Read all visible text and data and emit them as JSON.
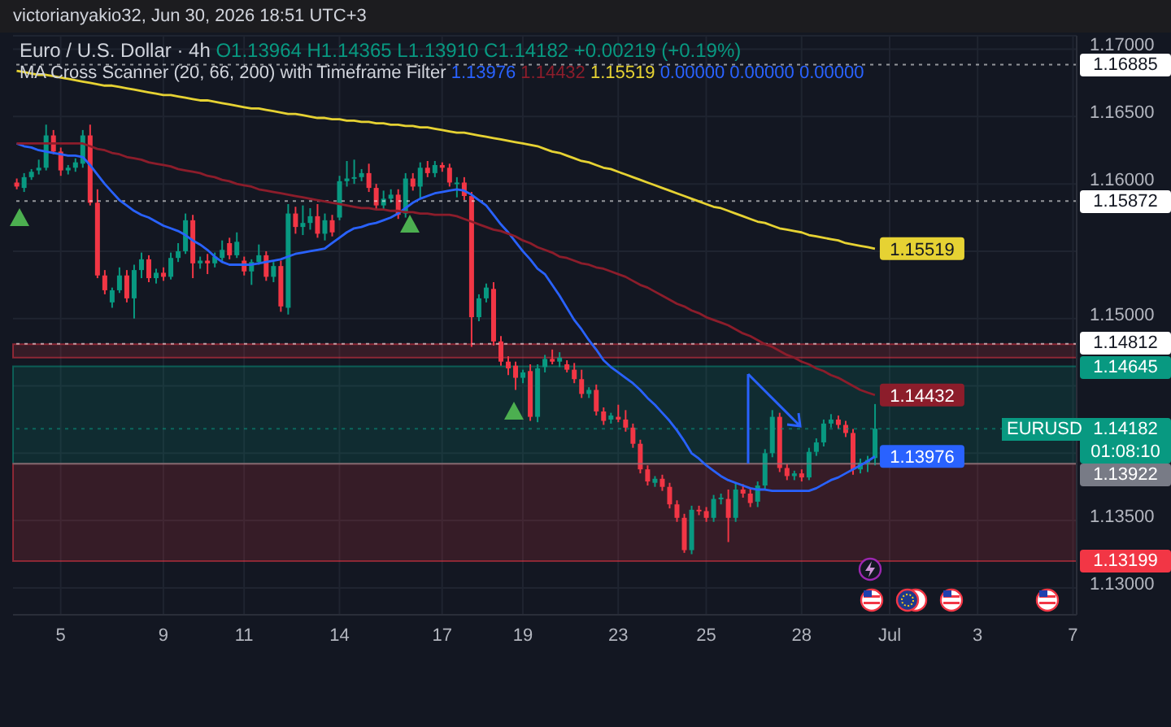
{
  "chart_data": {
    "type": "candlestick",
    "title": "Euro / U.S. Dollar · 4h",
    "subtitle": "victorianyakio32, Jun 30, 2026 18:51 UTC+3",
    "annotations": [
      "O1.13964 H1.14365 L1.13910 C1.14182 +0.00219 (+0.19%)",
      "MA Cross Scanner (20, 66, 200) with Timeframe Filter",
      "0.00000 0.00000 0.00000",
      {
        "text": "EURUSD",
        "y": 1.14182
      },
      "01:08:10"
    ],
    "categories": [
      null,
      null,
      null,
      null,
      null,
      null,
      "5",
      null,
      null,
      null,
      null,
      null,
      null,
      null,
      null,
      null,
      null,
      null,
      null,
      null,
      "9",
      null,
      null,
      null,
      null,
      null,
      null,
      null,
      null,
      null,
      null,
      "11",
      null,
      null,
      null,
      null,
      null,
      null,
      null,
      null,
      null,
      null,
      null,
      null,
      "14",
      null,
      null,
      null,
      null,
      null,
      null,
      null,
      null,
      null,
      null,
      null,
      null,
      null,
      "17",
      null,
      null,
      null,
      null,
      null,
      null,
      null,
      null,
      null,
      null,
      "19",
      null,
      null,
      null,
      null,
      null,
      null,
      null,
      null,
      null,
      null,
      null,
      null,
      "23",
      null,
      null,
      null,
      null,
      null,
      null,
      null,
      null,
      null,
      null,
      null,
      "25",
      null,
      null,
      null,
      null,
      null,
      null,
      null,
      null,
      null,
      null,
      null,
      null,
      "28",
      null,
      null,
      null,
      null,
      null,
      null,
      null,
      null,
      null,
      null,
      null,
      "Jul",
      null,
      null,
      null,
      null,
      null,
      null,
      null,
      null,
      null,
      null,
      null,
      "3",
      null,
      null,
      null,
      null,
      null,
      null,
      null,
      null,
      null,
      null,
      null,
      null,
      "7"
    ],
    "ohlc": [
      [
        1.1601,
        1.1604,
        1.1596,
        1.1598
      ],
      [
        1.1597,
        1.1608,
        1.1594,
        1.1605
      ],
      [
        1.1605,
        1.1611,
        1.1603,
        1.1609
      ],
      [
        1.161,
        1.1618,
        1.1607,
        1.1612
      ],
      [
        1.1612,
        1.1644,
        1.161,
        1.1636
      ],
      [
        1.1636,
        1.164,
        1.1622,
        1.1624
      ],
      [
        1.1624,
        1.1627,
        1.1606,
        1.161
      ],
      [
        1.161,
        1.1614,
        1.1607,
        1.1612
      ],
      [
        1.1612,
        1.1619,
        1.1609,
        1.1616
      ],
      [
        1.1615,
        1.164,
        1.1612,
        1.1636
      ],
      [
        1.1636,
        1.1644,
        1.1584,
        1.1586
      ],
      [
        1.1586,
        1.1596,
        1.153,
        1.1532
      ],
      [
        1.1532,
        1.1536,
        1.1518,
        1.1521
      ],
      [
        1.1512,
        1.1523,
        1.1508,
        1.1521
      ],
      [
        1.1521,
        1.1538,
        1.1519,
        1.1532
      ],
      [
        1.1532,
        1.1536,
        1.1512,
        1.1515
      ],
      [
        1.1515,
        1.154,
        1.15,
        1.1536
      ],
      [
        1.1536,
        1.1549,
        1.153,
        1.1544
      ],
      [
        1.1544,
        1.1547,
        1.1527,
        1.153
      ],
      [
        1.153,
        1.1537,
        1.1526,
        1.1534
      ],
      [
        1.1534,
        1.1538,
        1.1528,
        1.1531
      ],
      [
        1.1531,
        1.1549,
        1.1529,
        1.1545
      ],
      [
        1.1545,
        1.1556,
        1.1542,
        1.155
      ],
      [
        1.155,
        1.1578,
        1.1548,
        1.1573
      ],
      [
        1.1573,
        1.1577,
        1.153,
        1.1541
      ],
      [
        1.1541,
        1.1546,
        1.1537,
        1.1543
      ],
      [
        1.1543,
        1.1548,
        1.1533,
        1.1541
      ],
      [
        1.1541,
        1.1549,
        1.1538,
        1.1546
      ],
      [
        1.1545,
        1.1558,
        1.1542,
        1.1551
      ],
      [
        1.1556,
        1.156,
        1.1544,
        1.1547
      ],
      [
        1.1547,
        1.1564,
        1.1545,
        1.1557
      ],
      [
        1.1543,
        1.1546,
        1.1532,
        1.1535
      ],
      [
        1.1535,
        1.1544,
        1.1525,
        1.1542
      ],
      [
        1.1542,
        1.1555,
        1.154,
        1.1547
      ],
      [
        1.1547,
        1.155,
        1.1528,
        1.1531
      ],
      [
        1.1531,
        1.1542,
        1.1527,
        1.1539
      ],
      [
        1.1539,
        1.1543,
        1.1505,
        1.1509
      ],
      [
        1.1508,
        1.1585,
        1.1503,
        1.1578
      ],
      [
        1.1578,
        1.1583,
        1.1563,
        1.1568
      ],
      [
        1.1568,
        1.1584,
        1.1562,
        1.1571
      ],
      [
        1.1571,
        1.1582,
        1.1566,
        1.1576
      ],
      [
        1.1576,
        1.1585,
        1.156,
        1.1563
      ],
      [
        1.1563,
        1.1578,
        1.1558,
        1.1573
      ],
      [
        1.1573,
        1.1577,
        1.1561,
        1.1564
      ],
      [
        1.1575,
        1.1606,
        1.1573,
        1.1602
      ],
      [
        1.1602,
        1.1617,
        1.1598,
        1.1604
      ],
      [
        1.1604,
        1.1618,
        1.16,
        1.1605
      ],
      [
        1.1605,
        1.1611,
        1.1602,
        1.1608
      ],
      [
        1.1608,
        1.1615,
        1.1594,
        1.1597
      ],
      [
        1.1597,
        1.16,
        1.1581,
        1.1584
      ],
      [
        1.1584,
        1.1595,
        1.1581,
        1.1589
      ],
      [
        1.1589,
        1.1596,
        1.1586,
        1.1592
      ],
      [
        1.1592,
        1.1596,
        1.1574,
        1.1577
      ],
      [
        1.1578,
        1.1608,
        1.1575,
        1.1604
      ],
      [
        1.1604,
        1.1608,
        1.1595,
        1.1598
      ],
      [
        1.1598,
        1.1616,
        1.1589,
        1.1612
      ],
      [
        1.1612,
        1.1617,
        1.1605,
        1.1608
      ],
      [
        1.1608,
        1.1617,
        1.1605,
        1.1614
      ],
      [
        1.1614,
        1.1616,
        1.1609,
        1.1612
      ],
      [
        1.1612,
        1.1615,
        1.1598,
        1.1601
      ],
      [
        1.16,
        1.1605,
        1.159,
        1.1601
      ],
      [
        1.1601,
        1.1605,
        1.1588,
        1.1591
      ],
      [
        1.1591,
        1.1594,
        1.1479,
        1.1501
      ],
      [
        1.1501,
        1.1518,
        1.1498,
        1.1515
      ],
      [
        1.1515,
        1.1526,
        1.1512,
        1.1523
      ],
      [
        1.1522,
        1.1527,
        1.148,
        1.1483
      ],
      [
        1.1483,
        1.1487,
        1.1465,
        1.1468
      ],
      [
        1.1468,
        1.1472,
        1.1458,
        1.1463
      ],
      [
        1.1465,
        1.1468,
        1.1447,
        1.1456
      ],
      [
        1.1456,
        1.1462,
        1.1452,
        1.146
      ],
      [
        1.1461,
        1.1466,
        1.1424,
        1.1427
      ],
      [
        1.1427,
        1.1466,
        1.1423,
        1.1463
      ],
      [
        1.1464,
        1.1473,
        1.146,
        1.147
      ],
      [
        1.147,
        1.1477,
        1.1466,
        1.1468
      ],
      [
        1.1468,
        1.1475,
        1.1464,
        1.1471
      ],
      [
        1.1466,
        1.1469,
        1.146,
        1.1462
      ],
      [
        1.1462,
        1.1467,
        1.1452,
        1.1455
      ],
      [
        1.1455,
        1.1462,
        1.1441,
        1.1444
      ],
      [
        1.1444,
        1.1449,
        1.1441,
        1.1447
      ],
      [
        1.1447,
        1.1451,
        1.1428,
        1.1431
      ],
      [
        1.1431,
        1.1434,
        1.1421,
        1.1424
      ],
      [
        1.1425,
        1.143,
        1.1422,
        1.1428
      ],
      [
        1.1427,
        1.1436,
        1.1423,
        1.1425
      ],
      [
        1.1425,
        1.1432,
        1.1416,
        1.1419
      ],
      [
        1.1419,
        1.1422,
        1.1404,
        1.1407
      ],
      [
        1.1407,
        1.141,
        1.1385,
        1.1388
      ],
      [
        1.1388,
        1.1391,
        1.1376,
        1.1379
      ],
      [
        1.1378,
        1.1383,
        1.1375,
        1.1381
      ],
      [
        1.1381,
        1.1384,
        1.1372,
        1.1375
      ],
      [
        1.1375,
        1.1378,
        1.1359,
        1.1362
      ],
      [
        1.1362,
        1.1365,
        1.1349,
        1.1352
      ],
      [
        1.1352,
        1.1355,
        1.1326,
        1.1328
      ],
      [
        1.1328,
        1.1361,
        1.1325,
        1.1358
      ],
      [
        1.1358,
        1.1361,
        1.1354,
        1.1357
      ],
      [
        1.1357,
        1.136,
        1.1349,
        1.1352
      ],
      [
        1.1352,
        1.1369,
        1.1349,
        1.1366
      ],
      [
        1.1366,
        1.137,
        1.1362,
        1.1367
      ],
      [
        1.1366,
        1.1373,
        1.1334,
        1.1352
      ],
      [
        1.1352,
        1.1378,
        1.1349,
        1.1373
      ],
      [
        1.1373,
        1.1377,
        1.1367,
        1.137
      ],
      [
        1.137,
        1.1374,
        1.136,
        1.1363
      ],
      [
        1.1364,
        1.1379,
        1.136,
        1.1376
      ],
      [
        1.1376,
        1.1403,
        1.1373,
        1.14
      ],
      [
        1.14,
        1.1432,
        1.1397,
        1.1427
      ],
      [
        1.1427,
        1.143,
        1.1386,
        1.1389
      ],
      [
        1.1389,
        1.1392,
        1.138,
        1.1383
      ],
      [
        1.1383,
        1.1387,
        1.138,
        1.1385
      ],
      [
        1.1385,
        1.1388,
        1.1379,
        1.1382
      ],
      [
        1.1382,
        1.1404,
        1.138,
        1.1401
      ],
      [
        1.1401,
        1.1411,
        1.1398,
        1.1408
      ],
      [
        1.1408,
        1.1425,
        1.1405,
        1.1422
      ],
      [
        1.1422,
        1.1429,
        1.1419,
        1.1425
      ],
      [
        1.1425,
        1.1428,
        1.1418,
        1.1421
      ],
      [
        1.1421,
        1.1424,
        1.1412,
        1.1415
      ],
      [
        1.1415,
        1.1418,
        1.1384,
        1.1388
      ],
      [
        1.1388,
        1.1396,
        1.1385,
        1.1393
      ],
      [
        1.1393,
        1.1398,
        1.1386,
        1.1395
      ],
      [
        1.13964,
        1.14365,
        1.1391,
        1.14182
      ],
      null,
      null,
      null,
      null,
      null,
      null,
      null,
      null,
      null,
      null,
      null,
      null,
      null,
      null,
      null,
      null,
      null,
      null,
      null,
      null,
      null,
      null,
      null,
      null,
      null,
      null,
      null
    ],
    "series": [
      {
        "type": "line",
        "color": "#2962ff",
        "values": [
          1.163,
          1.1628,
          1.1627,
          1.1625,
          1.1624,
          1.1623,
          1.1622,
          1.1621,
          1.1621,
          1.162,
          1.1614,
          1.1607,
          1.16,
          1.1594,
          1.1588,
          1.1584,
          1.158,
          1.1577,
          1.1575,
          1.1572,
          1.1569,
          1.1567,
          1.1565,
          1.1562,
          1.1558,
          1.1555,
          1.1551,
          1.1546,
          1.1542,
          1.154,
          1.154,
          1.154,
          1.154,
          1.1541,
          1.1542,
          1.1543,
          1.1544,
          1.1546,
          1.1548,
          1.1549,
          1.155,
          1.1551,
          1.1552,
          1.1556,
          1.156,
          1.1564,
          1.1567,
          1.1568,
          1.157,
          1.1571,
          1.1573,
          1.1575,
          1.1578,
          1.1582,
          1.1586,
          1.1589,
          1.1591,
          1.1593,
          1.1594,
          1.1595,
          1.1596,
          1.1595,
          1.1592,
          1.1588,
          1.1584,
          1.1577,
          1.157,
          1.1564,
          1.1557,
          1.155,
          1.1544,
          1.1537,
          1.1533,
          1.1525,
          1.1517,
          1.1508,
          1.1499,
          1.1492,
          1.1484,
          1.1477,
          1.1469,
          1.1464,
          1.146,
          1.1456,
          1.1452,
          1.1447,
          1.1441,
          1.1436,
          1.143,
          1.1424,
          1.1417,
          1.1409,
          1.14,
          1.1396,
          1.1391,
          1.1387,
          1.1383,
          1.138,
          1.1378,
          1.1376,
          1.1374,
          1.1373,
          1.1373,
          1.1372,
          1.1372,
          1.1372,
          1.1372,
          1.1372,
          1.1372,
          1.1374,
          1.1377,
          1.138,
          1.1382,
          1.1385,
          1.1388,
          1.1391,
          1.1394,
          1.13976,
          null,
          null,
          null,
          null,
          null,
          null,
          null,
          null,
          null,
          null,
          null,
          null,
          null,
          null,
          null,
          null,
          null,
          null,
          null,
          null,
          null,
          null,
          null,
          null,
          null,
          null,
          null
        ],
        "value_labels": [
          null,
          null,
          null,
          null,
          null,
          null,
          null,
          null,
          null,
          null,
          null,
          null,
          null,
          null,
          null,
          null,
          null,
          null,
          null,
          null,
          null,
          null,
          null,
          null,
          null,
          null,
          null,
          null,
          null,
          null,
          null,
          null,
          null,
          null,
          null,
          null,
          null,
          null,
          null,
          null,
          null,
          null,
          null,
          null,
          null,
          null,
          null,
          null,
          null,
          null,
          null,
          null,
          null,
          null,
          null,
          null,
          null,
          null,
          null,
          null,
          null,
          null,
          null,
          null,
          null,
          null,
          null,
          null,
          null,
          null,
          null,
          null,
          null,
          null,
          null,
          null,
          null,
          null,
          null,
          null,
          null,
          null,
          null,
          null,
          null,
          null,
          null,
          null,
          null,
          null,
          null,
          null,
          null,
          null,
          null,
          null,
          null,
          null,
          null,
          null,
          null,
          null,
          null,
          null,
          null,
          null,
          null,
          null,
          null,
          null,
          null,
          null,
          null,
          null,
          null,
          null,
          null,
          "1.13976",
          null,
          null,
          null,
          null,
          null,
          null,
          null,
          null,
          null,
          null,
          null,
          null,
          null,
          null,
          null,
          null,
          null,
          null,
          null,
          null,
          null,
          null,
          null,
          null,
          null,
          null,
          null
        ]
      },
      {
        "type": "line",
        "color": "#8c1d2b",
        "values": [
          1.163,
          1.163,
          1.163,
          1.163,
          1.163,
          1.163,
          1.163,
          1.163,
          1.163,
          1.163,
          1.1628,
          1.1626,
          1.1625,
          1.1623,
          1.1622,
          1.162,
          1.1619,
          1.1618,
          1.1616,
          1.1615,
          1.1614,
          1.1613,
          1.1611,
          1.161,
          1.1609,
          1.1608,
          1.1606,
          1.1605,
          1.1603,
          1.1602,
          1.16,
          1.1599,
          1.1598,
          1.1596,
          1.1595,
          1.1594,
          1.1593,
          1.1592,
          1.1591,
          1.159,
          1.1589,
          1.1588,
          1.1587,
          1.1586,
          1.1585,
          1.1584,
          1.1583,
          1.1582,
          1.1582,
          1.1581,
          1.1581,
          1.158,
          1.158,
          1.1579,
          1.1579,
          1.1578,
          1.1578,
          1.1577,
          1.1577,
          1.1577,
          1.1576,
          1.1574,
          1.1572,
          1.157,
          1.1568,
          1.1566,
          1.1565,
          1.1563,
          1.1561,
          1.1558,
          1.1556,
          1.1553,
          1.1551,
          1.1549,
          1.1546,
          1.1545,
          1.1543,
          1.1541,
          1.154,
          1.1538,
          1.1537,
          1.1535,
          1.1533,
          1.1531,
          1.1528,
          1.1525,
          1.1523,
          1.152,
          1.1517,
          1.1514,
          1.1511,
          1.1509,
          1.1506,
          1.1504,
          1.1501,
          1.1499,
          1.1497,
          1.1495,
          1.1492,
          1.1489,
          1.1487,
          1.1484,
          1.1481,
          1.1479,
          1.1476,
          1.1473,
          1.1471,
          1.1468,
          1.1466,
          1.1463,
          1.1461,
          1.1458,
          1.1456,
          1.1453,
          1.145,
          1.1447,
          1.1445,
          1.14432,
          null,
          null,
          null,
          null,
          null,
          null,
          null,
          null,
          null,
          null,
          null,
          null,
          null,
          null,
          null,
          null,
          null,
          null,
          null,
          null,
          null,
          null,
          null,
          null,
          null,
          null,
          null
        ],
        "value_labels": [
          null,
          null,
          null,
          null,
          null,
          null,
          null,
          null,
          null,
          null,
          null,
          null,
          null,
          null,
          null,
          null,
          null,
          null,
          null,
          null,
          null,
          null,
          null,
          null,
          null,
          null,
          null,
          null,
          null,
          null,
          null,
          null,
          null,
          null,
          null,
          null,
          null,
          null,
          null,
          null,
          null,
          null,
          null,
          null,
          null,
          null,
          null,
          null,
          null,
          null,
          null,
          null,
          null,
          null,
          null,
          null,
          null,
          null,
          null,
          null,
          null,
          null,
          null,
          null,
          null,
          null,
          null,
          null,
          null,
          null,
          null,
          null,
          null,
          null,
          null,
          null,
          null,
          null,
          null,
          null,
          null,
          null,
          null,
          null,
          null,
          null,
          null,
          null,
          null,
          null,
          null,
          null,
          null,
          null,
          null,
          null,
          null,
          null,
          null,
          null,
          null,
          null,
          null,
          null,
          null,
          null,
          null,
          null,
          null,
          null,
          null,
          null,
          null,
          null,
          null,
          null,
          null,
          "1.14432",
          null,
          null,
          null,
          null,
          null,
          null,
          null,
          null,
          null,
          null,
          null,
          null,
          null,
          null,
          null,
          null,
          null,
          null,
          null,
          null,
          null,
          null,
          null,
          null,
          null,
          null,
          null
        ]
      },
      {
        "type": "line",
        "color": "#e6d233",
        "values": [
          1.1684,
          1.1683,
          1.1682,
          1.1681,
          1.1681,
          1.168,
          1.1679,
          1.1678,
          1.1677,
          1.1676,
          1.1675,
          1.1674,
          1.1673,
          1.1673,
          1.1672,
          1.1671,
          1.167,
          1.1669,
          1.1668,
          1.1667,
          1.1666,
          1.1666,
          1.1665,
          1.1664,
          1.1663,
          1.1662,
          1.1662,
          1.1661,
          1.166,
          1.1659,
          1.1658,
          1.1657,
          1.1656,
          1.1656,
          1.1655,
          1.1654,
          1.1653,
          1.1652,
          1.1652,
          1.1651,
          1.165,
          1.1649,
          1.1649,
          1.1648,
          1.1648,
          1.1647,
          1.1647,
          1.1646,
          1.1646,
          1.1645,
          1.1645,
          1.1644,
          1.1644,
          1.1643,
          1.1643,
          1.1642,
          1.1642,
          1.1641,
          1.164,
          1.1639,
          1.1638,
          1.1638,
          1.1637,
          1.1636,
          1.1635,
          1.1634,
          1.1633,
          1.1632,
          1.1631,
          1.163,
          1.1629,
          1.1628,
          1.1626,
          1.1624,
          1.1623,
          1.1621,
          1.1619,
          1.1617,
          1.1616,
          1.1614,
          1.1612,
          1.1611,
          1.1609,
          1.1607,
          1.1605,
          1.1603,
          1.1601,
          1.1599,
          1.1597,
          1.1595,
          1.1593,
          1.1591,
          1.1589,
          1.1587,
          1.1585,
          1.1583,
          1.1582,
          1.158,
          1.1578,
          1.1576,
          1.1574,
          1.1572,
          1.1571,
          1.1569,
          1.1567,
          1.1566,
          1.1565,
          1.1564,
          1.1562,
          1.1561,
          1.156,
          1.1559,
          1.1558,
          1.1556,
          1.1555,
          1.1554,
          1.1553,
          1.15519,
          null,
          null,
          null,
          null,
          null,
          null,
          null,
          null,
          null,
          null,
          null,
          null,
          null,
          null,
          null,
          null,
          null,
          null,
          null,
          null,
          null,
          null,
          null,
          null,
          null,
          null,
          null
        ],
        "value_labels": [
          null,
          null,
          null,
          null,
          null,
          null,
          null,
          null,
          null,
          null,
          null,
          null,
          null,
          null,
          null,
          null,
          null,
          null,
          null,
          null,
          null,
          null,
          null,
          null,
          null,
          null,
          null,
          null,
          null,
          null,
          null,
          null,
          null,
          null,
          null,
          null,
          null,
          null,
          null,
          null,
          null,
          null,
          null,
          null,
          null,
          null,
          null,
          null,
          null,
          null,
          null,
          null,
          null,
          null,
          null,
          null,
          null,
          null,
          null,
          null,
          null,
          null,
          null,
          null,
          null,
          null,
          null,
          null,
          null,
          null,
          null,
          null,
          null,
          null,
          null,
          null,
          null,
          null,
          null,
          null,
          null,
          null,
          null,
          null,
          null,
          null,
          null,
          null,
          null,
          null,
          null,
          null,
          null,
          null,
          null,
          null,
          null,
          null,
          null,
          null,
          null,
          null,
          null,
          null,
          null,
          null,
          null,
          null,
          null,
          null,
          null,
          null,
          null,
          null,
          null,
          null,
          null,
          "1.15519",
          null,
          null,
          null,
          null,
          null,
          null,
          null,
          null,
          null,
          null,
          null,
          null,
          null,
          null,
          null,
          null,
          null,
          null,
          null,
          null,
          null,
          null,
          null,
          null,
          null,
          null,
          null
        ]
      }
    ],
    "ylim": [
      1.128,
      1.171
    ],
    "yticks": [
      {
        "value": 1.13,
        "label": "1.13000"
      },
      {
        "value": 1.135,
        "label": "1.13500"
      },
      {
        "value": 1.14,
        "label": null
      },
      {
        "value": 1.145,
        "label": null
      },
      {
        "value": 1.15,
        "label": "1.15000"
      },
      {
        "value": 1.155,
        "label": null
      },
      {
        "value": 1.16,
        "label": "1.16000"
      },
      {
        "value": 1.165,
        "label": "1.16500"
      },
      {
        "value": 1.17,
        "label": "1.17000"
      }
    ],
    "ref_lines": [
      {
        "axis": "y",
        "value": 1.16885,
        "label": "1.16885",
        "color": "#ffffff",
        "line_style": "dotted"
      },
      {
        "axis": "y",
        "value": 1.15872,
        "label": "1.15872",
        "color": "#ffffff",
        "line_style": "dotted"
      },
      {
        "axis": "y",
        "value": 1.14812,
        "label": "1.14812",
        "color": "#ffffff",
        "line_style": "dotted"
      },
      {
        "axis": "y",
        "value": 1.14182,
        "label": "1.14182",
        "color": "#089981",
        "line_style": "dotted"
      },
      {
        "axis": "y",
        "value": 1.13922,
        "label": "1.13922",
        "color": "#787b86",
        "line_style": "solid"
      }
    ],
    "bands": [
      {
        "axis": "y",
        "from": 1.1471,
        "to": 1.1481,
        "color": "#f23645"
      },
      {
        "axis": "y",
        "from": 1.13922,
        "to": 1.14645,
        "label": "1.14645",
        "color": "#089981"
      },
      {
        "axis": "y",
        "from": 1.13922,
        "to": 1.13199,
        "label": "1.13199",
        "color": "#f23645"
      }
    ],
    "grid": true
  }
}
